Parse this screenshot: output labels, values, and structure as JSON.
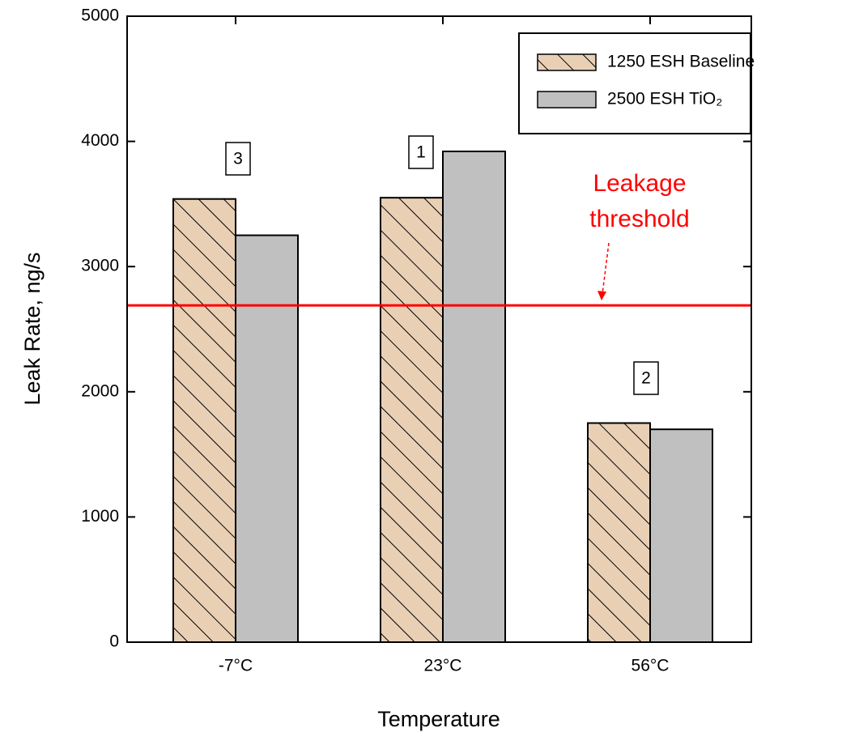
{
  "chart_data": {
    "type": "bar",
    "x_label": "Temperature",
    "y_label": "Leak Rate, ng/s",
    "categories": [
      "-7°C",
      "23°C",
      "56°C"
    ],
    "series": [
      {
        "name": "1250 ESH Baseline",
        "color": "#e9d0b5",
        "hatch": true,
        "values": [
          3540,
          3550,
          1750
        ]
      },
      {
        "name": "2500 ESH TiO₂",
        "color": "#c0c0c0",
        "hatch": false,
        "values": [
          3250,
          3920,
          1700
        ]
      }
    ],
    "ylim": [
      0,
      5000
    ],
    "yticks": [
      0,
      1000,
      2000,
      3000,
      4000,
      5000
    ],
    "legend": "upper right",
    "annotations": [
      "3",
      "1",
      "2"
    ],
    "threshold": {
      "value": 2690,
      "label": [
        "Leakage",
        "threshold"
      ],
      "color": "#ff0000"
    }
  }
}
